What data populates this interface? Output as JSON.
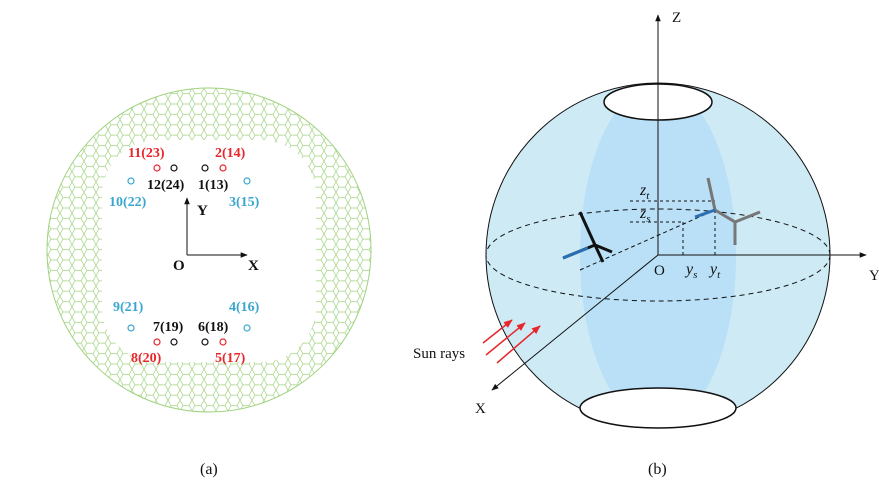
{
  "panel_a": {
    "nodes": [
      "11(23)",
      "2(14)",
      "12(24)",
      "1(13)",
      "10(22)",
      "3(15)",
      "9(21)",
      "4(16)",
      "7(19)",
      "6(18)",
      "8(20)",
      "5(17)"
    ],
    "axes": {
      "y": "Y",
      "origin": "O",
      "x": "X"
    },
    "caption": "(a)"
  },
  "panel_b": {
    "axes": {
      "z": "Z",
      "y": "Y",
      "x": "X",
      "origin": "O"
    },
    "heights": [
      {
        "base": "z",
        "sub": "t"
      },
      {
        "base": "z",
        "sub": "s"
      }
    ],
    "distances": [
      {
        "base": "y",
        "sub": "s"
      },
      {
        "base": "y",
        "sub": "t"
      }
    ],
    "sun_rays": "Sun rays",
    "caption": "(b)"
  }
}
